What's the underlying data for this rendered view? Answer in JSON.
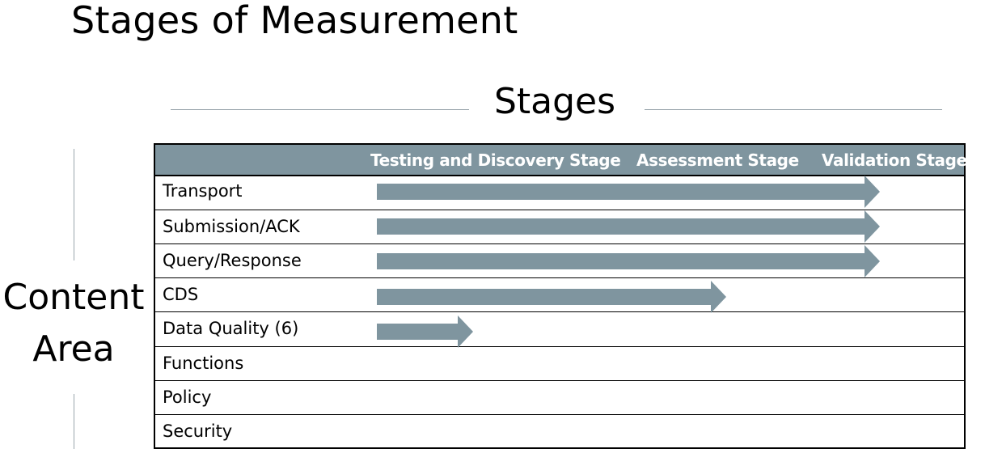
{
  "title": "Stages of Measurement",
  "stages_label": "Stages",
  "content_area_label": [
    "Content",
    "Area"
  ],
  "stages": [
    "Testing and Discovery Stage",
    "Assessment Stage",
    "Validation Stage"
  ],
  "rows": [
    {
      "label": "Transport",
      "arrow_end_stage": "Validation Stage"
    },
    {
      "label": "Submission/ACK",
      "arrow_end_stage": "Validation Stage"
    },
    {
      "label": "Query/Response",
      "arrow_end_stage": "Validation Stage"
    },
    {
      "label": "CDS",
      "arrow_end_stage": "Assessment Stage"
    },
    {
      "label": "Data Quality (6)",
      "arrow_end_stage": "Testing and Discovery Stage"
    },
    {
      "label": "Functions",
      "arrow_end_stage": null
    },
    {
      "label": "Policy",
      "arrow_end_stage": null
    },
    {
      "label": "Security",
      "arrow_end_stage": null
    }
  ],
  "colors": {
    "header_bg": "#7f959f",
    "arrow": "#7f959f",
    "rule": "#9aa6ad"
  }
}
